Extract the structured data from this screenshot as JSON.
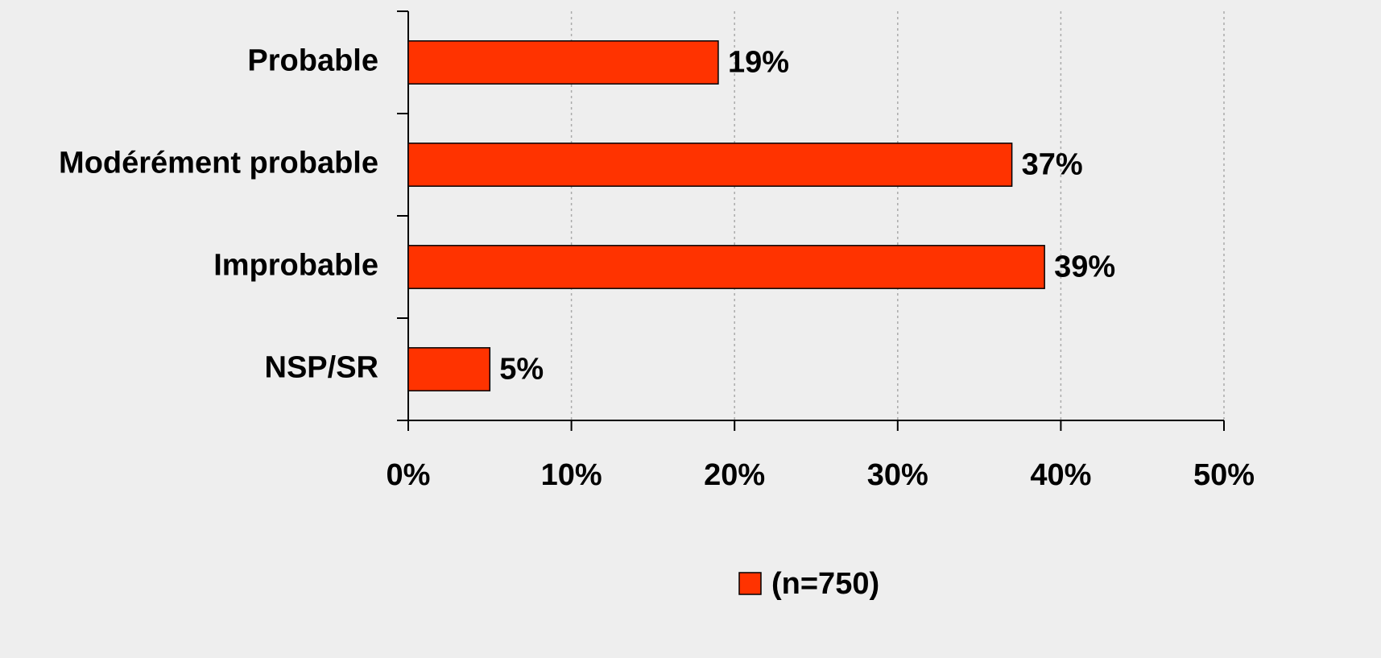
{
  "chart_data": {
    "type": "bar",
    "orientation": "horizontal",
    "categories": [
      "Probable",
      "Modérément probable",
      "Improbable",
      "NSP/SR"
    ],
    "series": [
      {
        "name": "(n=750)",
        "color": "#ff3300",
        "values": [
          19,
          37,
          39,
          5
        ],
        "value_labels": [
          "19%",
          "37%",
          "39%",
          "5%"
        ]
      }
    ],
    "xlim": [
      0,
      50
    ],
    "xticks": [
      {
        "value": 0,
        "label": "0%"
      },
      {
        "value": 10,
        "label": "10%"
      },
      {
        "value": 20,
        "label": "20%"
      },
      {
        "value": 30,
        "label": "30%"
      },
      {
        "value": 40,
        "label": "40%"
      },
      {
        "value": 50,
        "label": "50%"
      }
    ],
    "grid": true,
    "legend": "bottom"
  }
}
